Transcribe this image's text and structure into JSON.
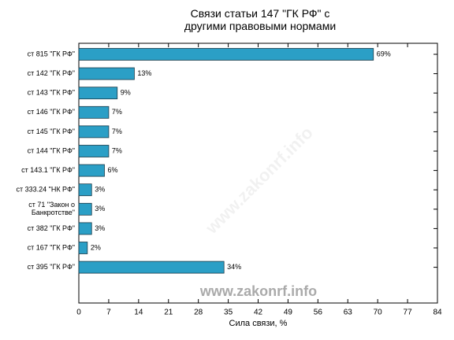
{
  "chart_data": {
    "type": "bar",
    "orientation": "horizontal",
    "title": "Связи статьи 147 \"ГК РФ\" с\nдругими правовыми нормами",
    "xlabel": "Сила связи, %",
    "watermark": "www.zakonrf.info",
    "categories": [
      "ст 815 \"ГК РФ\"",
      "ст 142 \"ГК РФ\"",
      "ст 143 \"ГК РФ\"",
      "ст 146 \"ГК РФ\"",
      "ст 145 \"ГК РФ\"",
      "ст 144 \"ГК РФ\"",
      "ст 143.1 \"ГК РФ\"",
      "ст 333.24 \"НК РФ\"",
      "ст 71 \"Закон о\nБанкротстве\"",
      "ст 382 \"ГК РФ\"",
      "ст 167 \"ГК РФ\"",
      "ст 395 \"ГК РФ\""
    ],
    "values": [
      69,
      13,
      9,
      7,
      7,
      7,
      6,
      3,
      3,
      3,
      2,
      34
    ],
    "value_labels": [
      "69%",
      "13%",
      "9%",
      "7%",
      "7%",
      "7%",
      "6%",
      "3%",
      "3%",
      "3%",
      "2%",
      "34%"
    ],
    "color": "#2b9fc6",
    "xlim": [
      0,
      84
    ],
    "xticks": [
      0,
      7,
      14,
      21,
      28,
      35,
      42,
      49,
      56,
      63,
      70,
      77,
      84
    ]
  }
}
